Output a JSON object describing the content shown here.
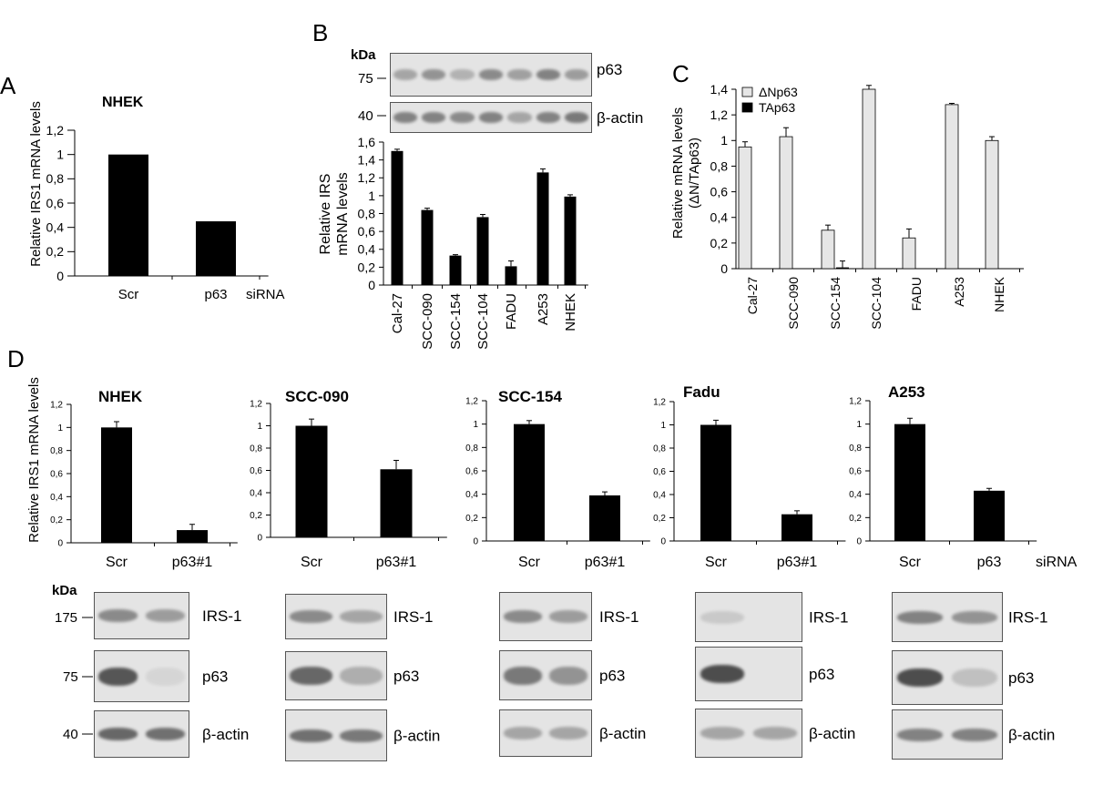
{
  "panel_labels": {
    "a": "A",
    "b": "B",
    "c": "C",
    "d": "D"
  },
  "colors": {
    "bar": "#000000",
    "bar_light": "#e6e6e6",
    "axis": "#000000",
    "blot_bg": "#e4e4e4",
    "band": "#333333"
  },
  "units": {
    "kda": "kDa",
    "sirna": "siRNA",
    "beta_actin": "β-actin"
  },
  "chart_data": [
    {
      "id": "A",
      "type": "bar",
      "title": "NHEK",
      "ylabel": "Relative IRS1 mRNA levels",
      "categories": [
        "Scr",
        "p63"
      ],
      "values": [
        1.0,
        0.45
      ],
      "ylim": [
        0,
        1.2
      ],
      "yticks": [
        "0",
        "0,2",
        "0,4",
        "0,6",
        "0,8",
        "1",
        "1,2"
      ],
      "xnote": "siRNA"
    },
    {
      "id": "B",
      "type": "bar",
      "title": "",
      "ylabel": "Relative IRS mRNA levels",
      "ylabel_lines": [
        "Relative IRS",
        "mRNA levels"
      ],
      "categories": [
        "Cal-27",
        "SCC-090",
        "SCC-154",
        "SCC-104",
        "FADU",
        "A253",
        "NHEK"
      ],
      "values": [
        1.5,
        0.84,
        0.33,
        0.76,
        0.21,
        1.26,
        0.99
      ],
      "errors": [
        0.02,
        0.02,
        0.01,
        0.03,
        0.06,
        0.04,
        0.02
      ],
      "ylim": [
        0,
        1.6
      ],
      "yticks": [
        "0",
        "0,2",
        "0,4",
        "0,6",
        "0,8",
        "1",
        "1,2",
        "1,4",
        "1,6"
      ],
      "blot": {
        "kda_label": "kDa",
        "markers": [
          "75",
          "40"
        ],
        "proteins": [
          "p63",
          "β-actin"
        ]
      }
    },
    {
      "id": "C",
      "type": "bar",
      "title": "",
      "ylabel": "Relative mRNA levels (ΔN/TAp63)",
      "ylabel_lines": [
        "Relative mRNA levels",
        "(ΔN/TAp63)"
      ],
      "categories": [
        "Cal-27",
        "SCC-090",
        "SCC-154",
        "SCC-104",
        "FADU",
        "A253",
        "NHEK"
      ],
      "series": [
        {
          "name": "ΔNp63",
          "values": [
            0.95,
            1.03,
            0.3,
            1.4,
            0.24,
            1.28,
            1.0
          ],
          "errors": [
            0.04,
            0.07,
            0.04,
            0.03,
            0.07,
            0.01,
            0.03
          ]
        },
        {
          "name": "TAp63",
          "values": [
            0,
            0,
            0.01,
            0,
            0,
            0,
            0
          ],
          "errors": [
            0,
            0,
            0.05,
            0,
            0,
            0,
            0
          ]
        }
      ],
      "ylim": [
        0,
        1.4
      ],
      "yticks": [
        "0",
        "0,2",
        "0,4",
        "0,6",
        "0,8",
        "1",
        "1,2",
        "1,4"
      ],
      "legend": "top-left"
    },
    {
      "id": "D1",
      "type": "bar",
      "title": "NHEK",
      "ylabel": "Relative IRS1 mRNA levels",
      "categories": [
        "Scr",
        "p63#1"
      ],
      "values": [
        1.0,
        0.11
      ],
      "errors": [
        0.05,
        0.05
      ],
      "ylim": [
        0,
        1.2
      ],
      "yticks": [
        "0",
        "0,2",
        "0,4",
        "0,6",
        "0,8",
        "1",
        "1,2"
      ]
    },
    {
      "id": "D2",
      "type": "bar",
      "title": "SCC-090",
      "categories": [
        "Scr",
        "p63#1"
      ],
      "values": [
        1.0,
        0.61
      ],
      "errors": [
        0.06,
        0.08
      ],
      "ylim": [
        0,
        1.2
      ],
      "yticks": [
        "0",
        "0,2",
        "0,4",
        "0,6",
        "0,8",
        "1",
        "1,2"
      ]
    },
    {
      "id": "D3",
      "type": "bar",
      "title": "SCC-154",
      "categories": [
        "Scr",
        "p63#1"
      ],
      "values": [
        1.0,
        0.39
      ],
      "errors": [
        0.03,
        0.03
      ],
      "ylim": [
        0,
        1.2
      ],
      "yticks": [
        "0",
        "0,2",
        "0,4",
        "0,6",
        "0,8",
        "1",
        "1,2"
      ]
    },
    {
      "id": "D4",
      "type": "bar",
      "title": "Fadu",
      "categories": [
        "Scr",
        "p63#1"
      ],
      "values": [
        1.0,
        0.23
      ],
      "errors": [
        0.04,
        0.03
      ],
      "ylim": [
        0,
        1.2
      ],
      "yticks": [
        "0",
        "0,2",
        "0,4",
        "0,6",
        "0,8",
        "1",
        "1,2"
      ]
    },
    {
      "id": "D5",
      "type": "bar",
      "title": "A253",
      "categories": [
        "Scr",
        "p63"
      ],
      "values": [
        1.0,
        0.43
      ],
      "errors": [
        0.05,
        0.02
      ],
      "ylim": [
        0,
        1.2
      ],
      "yticks": [
        "0",
        "0,2",
        "0,4",
        "0,6",
        "0,8",
        "1",
        "1,2"
      ],
      "xnote": "siRNA"
    }
  ],
  "d_blots": {
    "kda_label": "kDa",
    "markers": [
      "175",
      "75",
      "40"
    ],
    "proteins": [
      "IRS-1",
      "p63",
      "β-actin"
    ]
  }
}
